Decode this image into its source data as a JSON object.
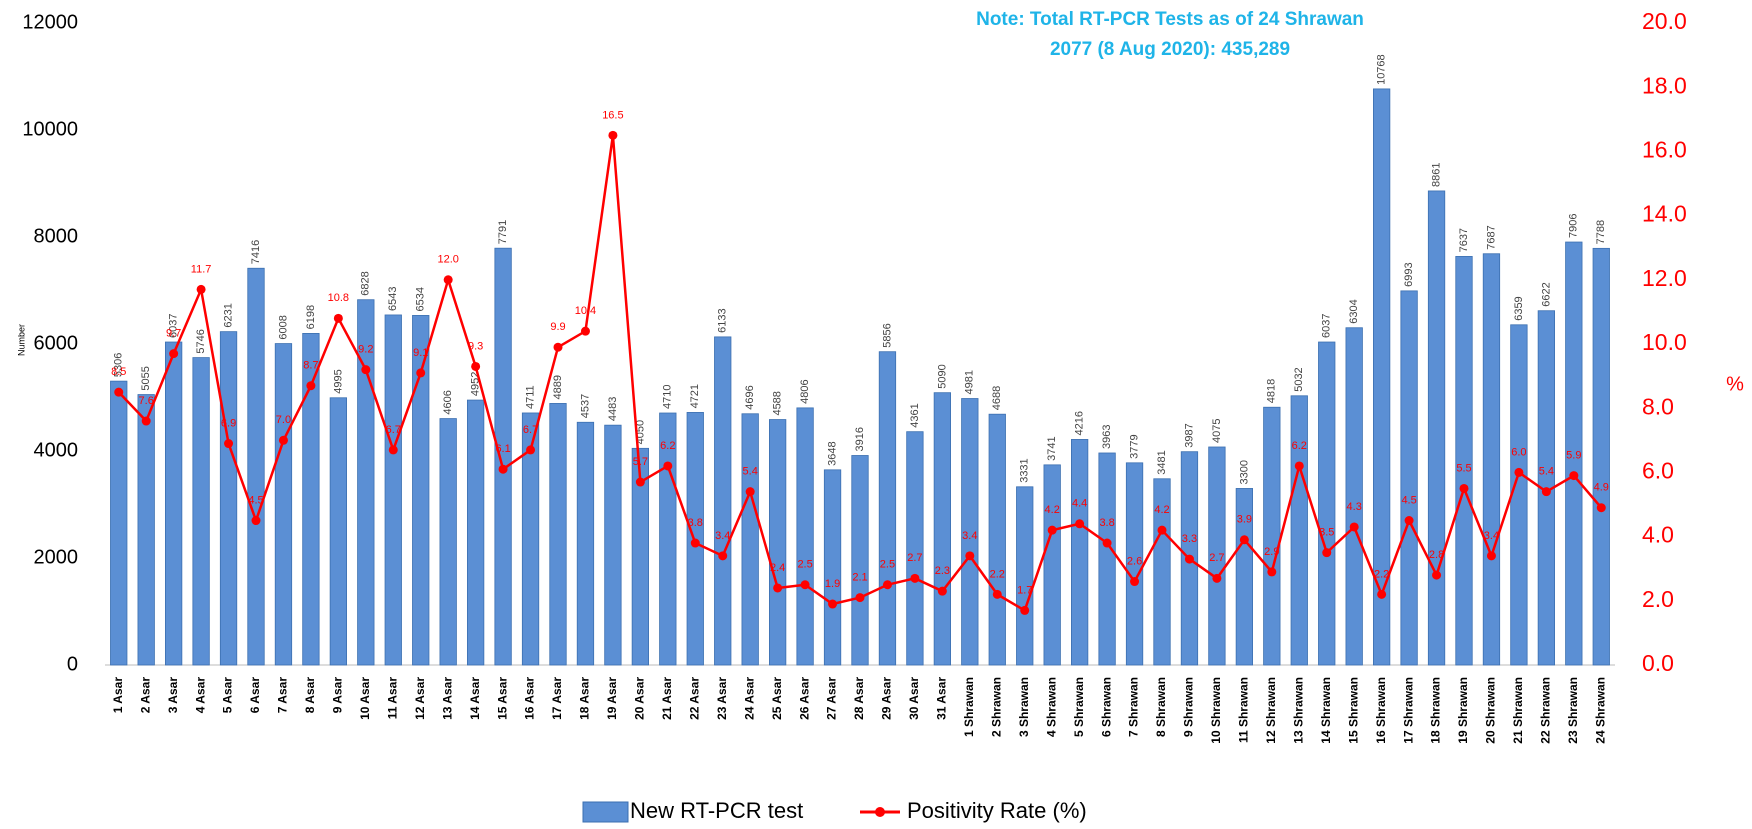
{
  "chart_data": {
    "type": "bar_line",
    "annotation": [
      "Note: Total RT-PCR Tests as of 24 Shrawan",
      "2077 (8 Aug 2020): 435,289"
    ],
    "ylabel": "Number",
    "y2label": "%",
    "categories": [
      "1 Asar",
      "2 Asar",
      "3 Asar",
      "4 Asar",
      "5 Asar",
      "6 Asar",
      "7 Asar",
      "8 Asar",
      "9 Asar",
      "10 Asar",
      "11 Asar",
      "12 Asar",
      "13 Asar",
      "14 Asar",
      "15 Asar",
      "16 Asar",
      "17 Asar",
      "18 Asar",
      "19 Asar",
      "20 Asar",
      "21 Asar",
      "22 Asar",
      "23 Asar",
      "24 Asar",
      "25 Asar",
      "26 Asar",
      "27 Asar",
      "28 Asar",
      "29 Asar",
      "30 Asar",
      "31 Asar",
      "1 Shrawan",
      "2 Shrawan",
      "3 Shrawan",
      "4 Shrawan",
      "5 Shrawan",
      "6 Shrawan",
      "7 Shrawan",
      "8 Shrawan",
      "9 Shrawan",
      "10 Shrawan",
      "11 Shrawan",
      "12 Shrawan",
      "13 Shrawan",
      "14 Shrawan",
      "15 Shrawan",
      "16 Shrawan",
      "17 Shrawan",
      "18 Shrawan",
      "19 Shrawan",
      "20 Shrawan",
      "21 Shrawan",
      "22 Shrawan",
      "23 Shrawan",
      "24 Shrawan"
    ],
    "series": [
      {
        "name": "New RT-PCR test",
        "type": "bar",
        "color": "#5b8fd4",
        "values": [
          5306,
          5055,
          6037,
          5746,
          6231,
          7416,
          6008,
          6198,
          4995,
          6828,
          6543,
          6534,
          4606,
          4952,
          7791,
          4711,
          4889,
          4537,
          4483,
          4050,
          4710,
          4721,
          6133,
          4696,
          4588,
          4806,
          3648,
          3916,
          5856,
          4361,
          5090,
          4981,
          4688,
          3331,
          3741,
          4216,
          3963,
          3779,
          3481,
          3987,
          4075,
          3300,
          4818,
          5032,
          6037,
          6304,
          10768,
          6993,
          8861,
          7637,
          7687,
          6359,
          6622,
          7906,
          7788
        ]
      },
      {
        "name": "Positivity Rate (%)",
        "type": "line",
        "axis": "y2",
        "color": "#ff0000",
        "values": [
          8.5,
          7.6,
          9.7,
          11.7,
          6.9,
          4.5,
          7.0,
          8.7,
          10.8,
          9.2,
          6.7,
          9.1,
          12.0,
          9.3,
          6.1,
          6.7,
          9.9,
          10.4,
          16.5,
          5.7,
          6.2,
          3.8,
          3.4,
          5.4,
          2.4,
          2.5,
          1.9,
          2.1,
          2.5,
          2.7,
          2.3,
          3.4,
          2.2,
          1.7,
          4.2,
          4.4,
          3.8,
          2.6,
          4.2,
          3.3,
          2.7,
          3.9,
          2.9,
          6.2,
          3.5,
          4.3,
          2.2,
          4.5,
          2.8,
          5.5,
          3.4,
          6.0,
          5.4,
          5.9,
          4.9
        ],
        "value_labels": [
          "8.5",
          "7.6",
          "9.7",
          "11.7",
          "6.9",
          "4.5",
          "7.0",
          "8.7",
          "10.8",
          "9.2",
          "6.7",
          "9.1",
          "12.0",
          "9.3",
          "6.1",
          "6.7",
          "9.9",
          "10.4",
          "16.5",
          "5.7",
          "6.2",
          "3.8",
          "3.4",
          "5.4",
          "2.4",
          "2.5",
          "1.9",
          "2.1",
          "2.5",
          "2.7",
          "2.3",
          "3.4",
          "2.2",
          "1.7",
          "4.2",
          "4.4",
          "3.8",
          "2.6",
          "4.2",
          "3.3",
          "2.7",
          "3.9",
          "2.9",
          "6.2",
          "3.5",
          "4.3",
          "2.2",
          "4.5",
          "2.8",
          "5.5",
          "3.4",
          "6.0",
          "5.4",
          "5.9",
          "4.9"
        ]
      }
    ],
    "ylim": [
      0,
      12000
    ],
    "yticks": [
      0,
      2000,
      4000,
      6000,
      8000,
      10000,
      12000
    ],
    "y2lim": [
      0,
      20
    ],
    "y2ticks": [
      {
        "value": 0,
        "label": "0.0"
      },
      {
        "value": 2,
        "label": "2.0"
      },
      {
        "value": 4,
        "label": "4.0"
      },
      {
        "value": 6,
        "label": "6.0"
      },
      {
        "value": 8,
        "label": "8.0"
      },
      {
        "value": 10,
        "label": "10.0"
      },
      {
        "value": 12,
        "label": "12.0"
      },
      {
        "value": 14,
        "label": "14.0"
      },
      {
        "value": 16,
        "label": "16.0"
      },
      {
        "value": 18,
        "label": "18.0"
      },
      {
        "value": 20,
        "label": "20.0"
      }
    ],
    "legend": "bottom"
  }
}
